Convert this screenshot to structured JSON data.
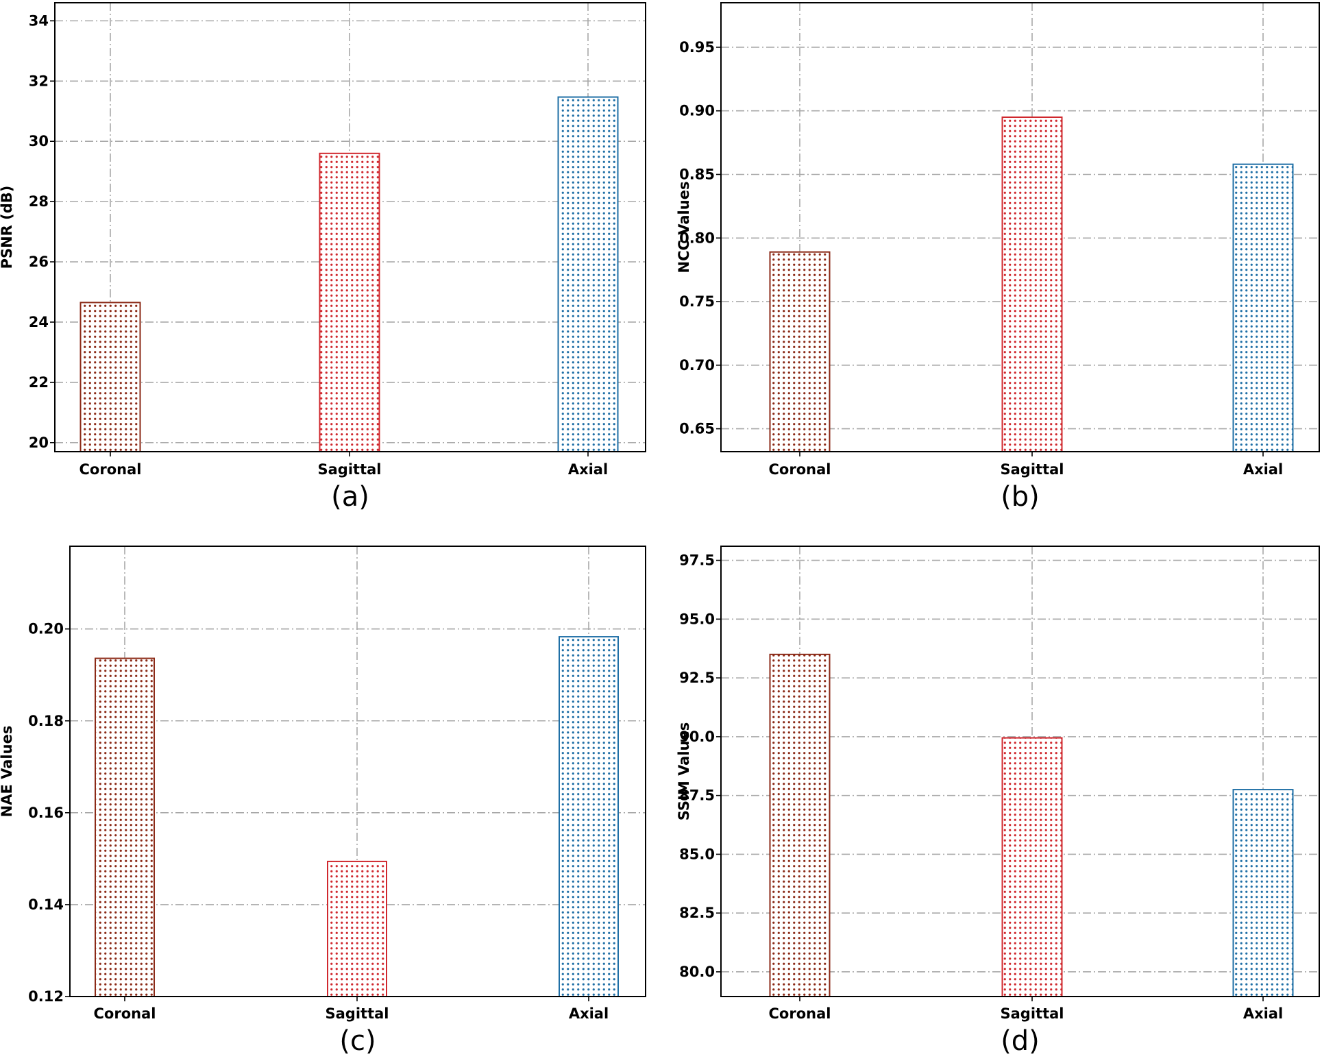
{
  "chart_data": [
    {
      "type": "bar",
      "panel_label": "(a)",
      "categories": [
        "Coronal",
        "Sagittal",
        "Axial"
      ],
      "values": [
        24.65,
        29.6,
        31.47
      ],
      "ylabel": "PSNR (dB)",
      "ylim": [
        19.7,
        34.6
      ],
      "yticks": [
        20,
        22,
        24,
        26,
        28,
        30,
        32,
        34
      ],
      "ytick_labels": [
        "20",
        "22",
        "24",
        "26",
        "28",
        "30",
        "32",
        "34"
      ],
      "grid": true,
      "colors": [
        "#8b2a17",
        "#d0282e",
        "#1f6fa6"
      ]
    },
    {
      "type": "bar",
      "panel_label": "(b)",
      "categories": [
        "Coronal",
        "Sagittal",
        "Axial"
      ],
      "values": [
        0.789,
        0.895,
        0.858
      ],
      "ylabel": "NCC Values",
      "ylim": [
        0.632,
        0.985
      ],
      "yticks": [
        0.65,
        0.7,
        0.75,
        0.8,
        0.85,
        0.9,
        0.95
      ],
      "ytick_labels": [
        "0.65",
        "0.70",
        "0.75",
        "0.80",
        "0.85",
        "0.90",
        "0.95"
      ],
      "grid": true,
      "colors": [
        "#8b2a17",
        "#d0282e",
        "#1f6fa6"
      ]
    },
    {
      "type": "bar",
      "panel_label": "(c)",
      "categories": [
        "Coronal",
        "Sagittal",
        "Axial"
      ],
      "values": [
        0.1936,
        0.1494,
        0.1983
      ],
      "ylabel": "NAE Values",
      "ylim": [
        0.12,
        0.218
      ],
      "yticks": [
        0.12,
        0.14,
        0.16,
        0.18,
        0.2
      ],
      "ytick_labels": [
        "0.12",
        "0.14",
        "0.16",
        "0.18",
        "0.20"
      ],
      "grid": true,
      "colors": [
        "#8b2a17",
        "#d0282e",
        "#1f6fa6"
      ]
    },
    {
      "type": "bar",
      "panel_label": "(d)",
      "categories": [
        "Coronal",
        "Sagittal",
        "Axial"
      ],
      "values": [
        93.5,
        89.95,
        87.75
      ],
      "ylabel": "SSIM Values",
      "ylim": [
        78.95,
        98.1
      ],
      "yticks": [
        80,
        82.5,
        85,
        87.5,
        90,
        92.5,
        95,
        97.5
      ],
      "ytick_labels": [
        "80.0",
        "82.5",
        "85.0",
        "87.5",
        "90.0",
        "92.5",
        "95.0",
        "97.5"
      ],
      "grid": true,
      "colors": [
        "#8b2a17",
        "#d0282e",
        "#1f6fa6"
      ]
    }
  ]
}
